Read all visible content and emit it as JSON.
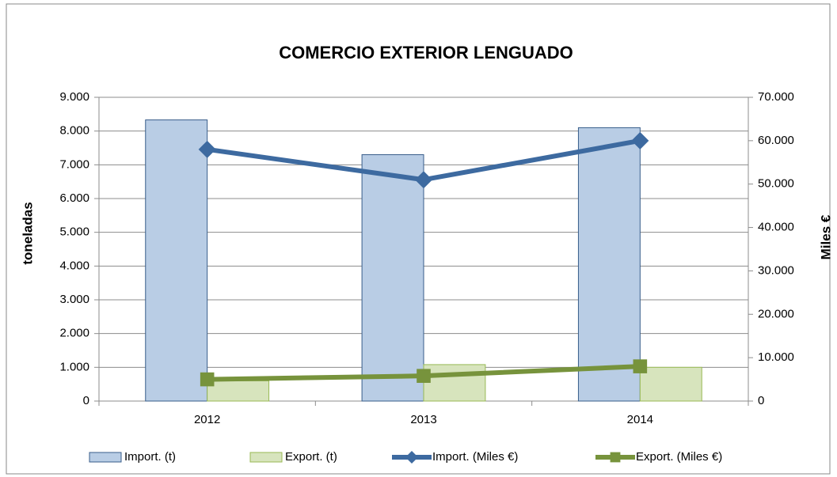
{
  "chart_data": {
    "type": "bar",
    "title": "COMERCIO EXTERIOR LENGUADO",
    "y_label": "toneladas",
    "y2_label": "Miles €",
    "categories": [
      "2012",
      "2013",
      "2014"
    ],
    "series": [
      {
        "name": "Import. (t)",
        "type": "bar",
        "color": "#b9cde5",
        "values": [
          8330,
          7300,
          8100
        ]
      },
      {
        "name": "Export. (t)",
        "type": "bar",
        "color": "#d7e4bd",
        "values": [
          600,
          1080,
          1000
        ]
      },
      {
        "name": "Import. (Miles €)",
        "type": "line",
        "marker": "diamond",
        "axis": "y2",
        "color": "#3d6aa0",
        "values": [
          58000,
          51000,
          60000
        ]
      },
      {
        "name": "Export. (Miles €)",
        "type": "line",
        "marker": "square",
        "axis": "y2",
        "color": "#77933c",
        "values": [
          5000,
          5800,
          8000
        ]
      }
    ],
    "ylim": [
      0,
      9000
    ],
    "yticks": [
      0,
      {
        "value": 1000,
        "label": "1.000"
      },
      {
        "value": 2000,
        "label": "2.000"
      },
      {
        "value": 3000,
        "label": "3.000"
      },
      {
        "value": 4000,
        "label": "4.000"
      },
      {
        "value": 5000,
        "label": "5.000"
      },
      {
        "value": 6000,
        "label": "6.000"
      },
      {
        "value": 7000,
        "label": "7.000"
      },
      {
        "value": 8000,
        "label": "8.000"
      },
      {
        "value": 9000,
        "label": "9.000"
      }
    ],
    "y2lim": [
      0,
      70000
    ],
    "y2ticks": [
      0,
      {
        "value": 10000,
        "label": "10.000"
      },
      {
        "value": 20000,
        "label": "20.000"
      },
      {
        "value": 30000,
        "label": "30.000"
      },
      {
        "value": 40000,
        "label": "40.000"
      },
      {
        "value": 50000,
        "label": "50.000"
      },
      {
        "value": 60000,
        "label": "60.000"
      },
      {
        "value": 70000,
        "label": "70.000"
      }
    ],
    "grid": true,
    "legend": "bottom"
  }
}
